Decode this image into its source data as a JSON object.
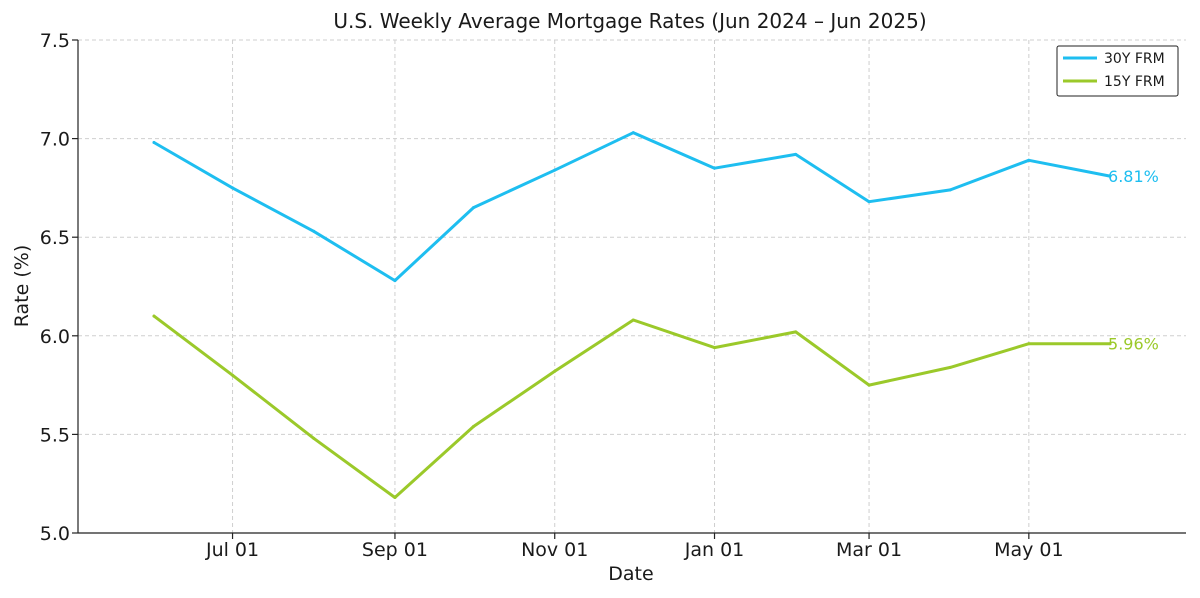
{
  "chart_data": {
    "type": "line",
    "title": "U.S. Weekly Average Mortgage Rates (Jun 2024 – Jun 2025)",
    "xlabel": "Date",
    "ylabel": "Rate (%)",
    "x_scale": "time",
    "ylim": [
      5.0,
      7.5
    ],
    "yticks": [
      "5.0",
      "5.5",
      "6.0",
      "6.5",
      "7.0",
      "7.5"
    ],
    "xticks": [
      {
        "date": "2024-07-01",
        "label": "Jul 01"
      },
      {
        "date": "2024-09-01",
        "label": "Sep 01"
      },
      {
        "date": "2024-11-01",
        "label": "Nov 01"
      },
      {
        "date": "2025-01-01",
        "label": "Jan 01"
      },
      {
        "date": "2025-03-01",
        "label": "Mar 01"
      },
      {
        "date": "2025-05-01",
        "label": "May 01"
      }
    ],
    "x": [
      "2024-06-01",
      "2024-07-01",
      "2024-08-01",
      "2024-09-01",
      "2024-10-01",
      "2024-11-01",
      "2024-12-01",
      "2025-01-01",
      "2025-02-01",
      "2025-03-01",
      "2025-04-01",
      "2025-05-01",
      "2025-06-01"
    ],
    "series": [
      {
        "name": "30Y FRM",
        "color": "#1ebef0",
        "values": [
          6.98,
          6.75,
          6.53,
          6.28,
          6.65,
          6.84,
          7.03,
          6.85,
          6.92,
          6.68,
          6.74,
          6.89,
          6.81
        ],
        "end_label": "6.81%"
      },
      {
        "name": "15Y FRM",
        "color": "#9bc92a",
        "values": [
          6.1,
          5.8,
          5.48,
          5.18,
          5.54,
          5.82,
          6.08,
          5.94,
          6.02,
          5.75,
          5.84,
          5.96,
          5.96
        ],
        "end_label": "5.96%"
      }
    ],
    "grid": true,
    "legend": "top-right"
  }
}
